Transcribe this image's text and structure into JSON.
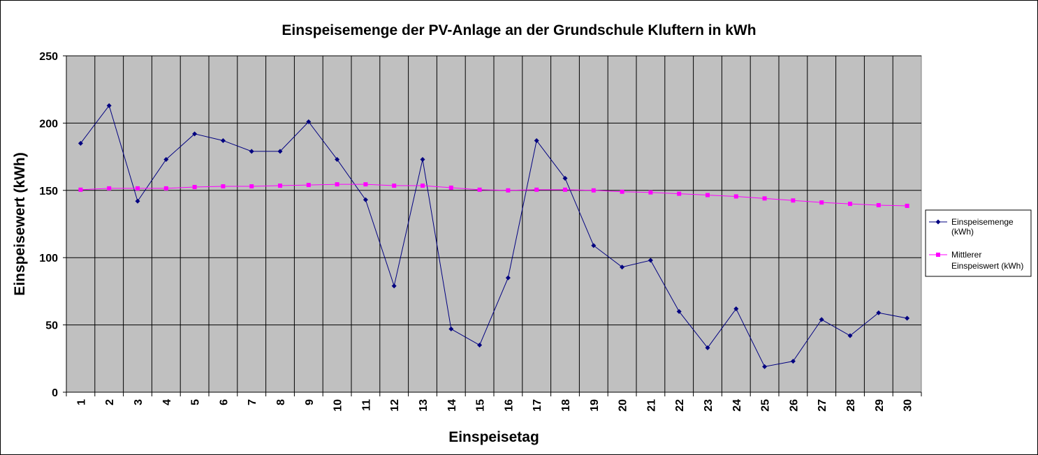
{
  "chart_data": {
    "type": "line",
    "title": "Einspeisemenge der PV-Anlage an der Grundschule Kluftern in kWh",
    "xlabel": "Einspeisetag",
    "ylabel": "Einspeisewert  (kWh)",
    "categories": [
      "1",
      "2",
      "3",
      "4",
      "5",
      "6",
      "7",
      "8",
      "9",
      "10",
      "11",
      "12",
      "13",
      "14",
      "15",
      "16",
      "17",
      "18",
      "19",
      "20",
      "21",
      "22",
      "23",
      "24",
      "25",
      "26",
      "27",
      "28",
      "29",
      "30"
    ],
    "ylim": [
      0,
      250
    ],
    "yticks": [
      0,
      50,
      100,
      150,
      200,
      250
    ],
    "grid": true,
    "legend_position": "right",
    "plot_background": "#C0C0C0",
    "series": [
      {
        "name": "Einspeisemenge (kWh)",
        "legend_lines": [
          "Einspeisemenge",
          "(kWh)"
        ],
        "color": "#000080",
        "marker": "diamond",
        "values": [
          185,
          213,
          142,
          173,
          192,
          187,
          179,
          179,
          201,
          173,
          143,
          79,
          173,
          47,
          35,
          85,
          187,
          159,
          109,
          93,
          98,
          60,
          33,
          62,
          19,
          23,
          54,
          42,
          59,
          55
        ]
      },
      {
        "name": "Mittlerer Einspeiswert (kWh)",
        "legend_lines": [
          "Mittlerer",
          "Einspeiswert (kWh)"
        ],
        "color": "#FF00FF",
        "marker": "square",
        "values": [
          150.5,
          151.5,
          151.5,
          151.5,
          152.5,
          153,
          153,
          153.5,
          154,
          154.5,
          154.5,
          153.5,
          153.5,
          152,
          150.5,
          150,
          150.5,
          150.5,
          150,
          149,
          148.5,
          147.5,
          146.5,
          145.5,
          144,
          142.5,
          141,
          140,
          139,
          138.5
        ]
      }
    ]
  }
}
